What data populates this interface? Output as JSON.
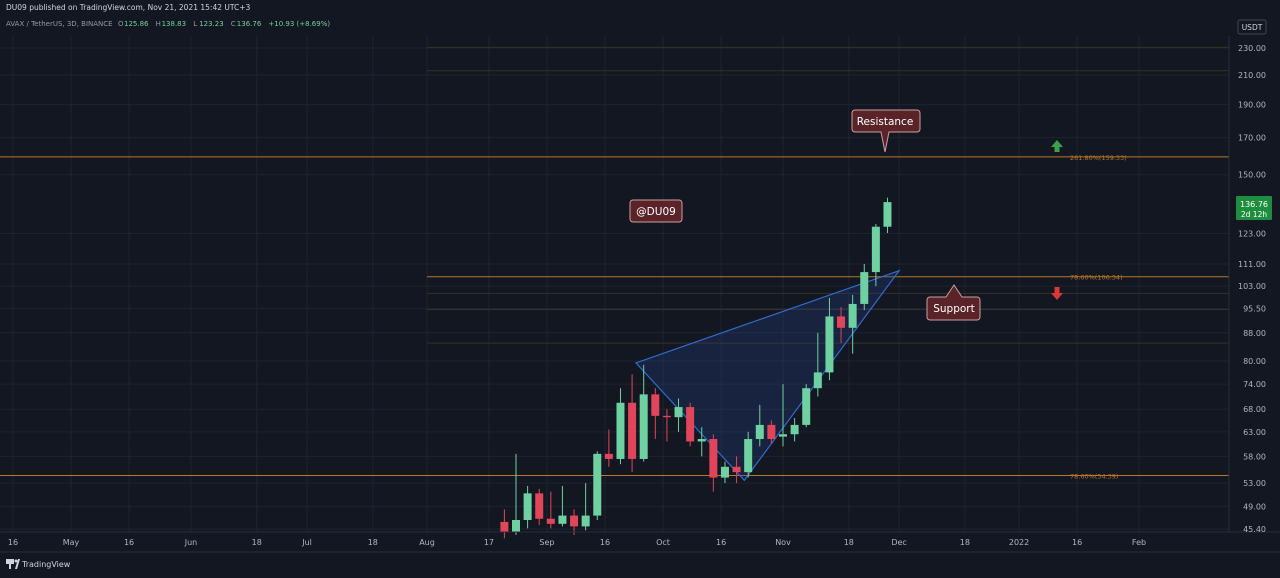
{
  "header": {
    "publish_line": "DU09 published on TradingView.com, Nov 21, 2021 15:42 UTC+3",
    "symbol": "AVAX / TetherUS, 3D, BINANCE",
    "ohlc": [
      {
        "label": "O",
        "value": "125.86"
      },
      {
        "label": "H",
        "value": "138.83"
      },
      {
        "label": "L",
        "value": "123.23"
      },
      {
        "label": "C",
        "value": "136.76"
      }
    ],
    "change": "+10.93 (+8.69%)"
  },
  "currency_label": "USDT",
  "price_tag": {
    "price": "136.76",
    "countdown": "2d 12h"
  },
  "footer": {
    "brand": "TradingView"
  },
  "annotations": {
    "watermark": "@DU09",
    "resistance_label": "Resistance",
    "support_label": "Support"
  },
  "colors": {
    "background": "#131722",
    "up": "#26a69a",
    "up_body": "#6fd1a1",
    "down": "#e0455a",
    "fib_line": "#b8772a",
    "wedge": "#2f6ccf",
    "price_tag": "#1e8e3e",
    "callout_bg": "#5a2328",
    "callout_border": "#c9a0a0",
    "arrow_up": "#3aa14f",
    "arrow_down": "#d83a3a"
  },
  "chart_data": {
    "type": "candlestick",
    "title": "AVAX / TetherUS, 3D, BINANCE",
    "scale": "log",
    "ylim": [
      45.4,
      250
    ],
    "y_ticks": [
      45.4,
      49.0,
      53.0,
      58.0,
      63.0,
      68.0,
      74.0,
      80.0,
      88.0,
      95.5,
      103.0,
      111.0,
      123.0,
      150.0,
      170.0,
      190.0,
      210.0,
      230.0
    ],
    "y_tick_labels": [
      "45.40",
      "49.00",
      "53.00",
      "58.00",
      "63.00",
      "68.00",
      "74.00",
      "80.00",
      "88.00",
      "95.50",
      "103.00",
      "111.00",
      "123.00",
      "150.00",
      "170.00",
      "190.00",
      "210.00",
      "230.00"
    ],
    "x_ticks": [
      {
        "date": "2021-04-16",
        "label": "16"
      },
      {
        "date": "2021-05-01",
        "label": "May"
      },
      {
        "date": "2021-05-16",
        "label": "16"
      },
      {
        "date": "2021-06-01",
        "label": "Jun"
      },
      {
        "date": "2021-06-18",
        "label": "18"
      },
      {
        "date": "2021-07-01",
        "label": "Jul"
      },
      {
        "date": "2021-07-18",
        "label": "18"
      },
      {
        "date": "2021-08-01",
        "label": "Aug"
      },
      {
        "date": "2021-08-17",
        "label": "17"
      },
      {
        "date": "2021-09-01",
        "label": "Sep"
      },
      {
        "date": "2021-09-16",
        "label": "16"
      },
      {
        "date": "2021-10-01",
        "label": "Oct"
      },
      {
        "date": "2021-10-16",
        "label": "16"
      },
      {
        "date": "2021-11-01",
        "label": "Nov"
      },
      {
        "date": "2021-11-18",
        "label": "18"
      },
      {
        "date": "2021-12-01",
        "label": "Dec"
      },
      {
        "date": "2021-12-18",
        "label": "18"
      },
      {
        "date": "2022-01-01",
        "label": "2022"
      },
      {
        "date": "2022-01-16",
        "label": "16"
      },
      {
        "date": "2022-02-01",
        "label": "Feb"
      }
    ],
    "x_range": [
      "2021-04-12",
      "2022-02-18"
    ],
    "candles": [
      {
        "date": "2021-08-21",
        "open": 46.5,
        "high": 48.5,
        "low": 44.0,
        "close": 45.0
      },
      {
        "date": "2021-08-24",
        "open": 45.0,
        "high": 58.5,
        "low": 44.5,
        "close": 46.8
      },
      {
        "date": "2021-08-27",
        "open": 46.8,
        "high": 52.5,
        "low": 45.5,
        "close": 51.2
      },
      {
        "date": "2021-08-30",
        "open": 51.2,
        "high": 52.0,
        "low": 46.0,
        "close": 47.0
      },
      {
        "date": "2021-09-02",
        "open": 47.0,
        "high": 51.5,
        "low": 45.5,
        "close": 46.2
      },
      {
        "date": "2021-09-05",
        "open": 46.2,
        "high": 52.5,
        "low": 45.8,
        "close": 47.5
      },
      {
        "date": "2021-09-08",
        "open": 47.5,
        "high": 48.5,
        "low": 44.5,
        "close": 45.8
      },
      {
        "date": "2021-09-11",
        "open": 45.8,
        "high": 53.0,
        "low": 45.2,
        "close": 47.5
      },
      {
        "date": "2021-09-14",
        "open": 47.5,
        "high": 59.0,
        "low": 46.8,
        "close": 58.5
      },
      {
        "date": "2021-09-17",
        "open": 58.5,
        "high": 63.5,
        "low": 56.0,
        "close": 57.5
      },
      {
        "date": "2021-09-20",
        "open": 57.5,
        "high": 73.0,
        "low": 56.5,
        "close": 69.5
      },
      {
        "date": "2021-09-23",
        "open": 69.5,
        "high": 76.5,
        "low": 55.0,
        "close": 57.5
      },
      {
        "date": "2021-09-26",
        "open": 57.5,
        "high": 79.0,
        "low": 57.0,
        "close": 71.5
      },
      {
        "date": "2021-09-29",
        "open": 71.5,
        "high": 73.0,
        "low": 61.5,
        "close": 66.5
      },
      {
        "date": "2021-10-02",
        "open": 66.5,
        "high": 68.0,
        "low": 61.0,
        "close": 66.2
      },
      {
        "date": "2021-10-05",
        "open": 66.2,
        "high": 70.5,
        "low": 63.0,
        "close": 68.5
      },
      {
        "date": "2021-10-08",
        "open": 68.5,
        "high": 69.5,
        "low": 60.0,
        "close": 61.0
      },
      {
        "date": "2021-10-11",
        "open": 61.0,
        "high": 64.0,
        "low": 58.0,
        "close": 61.5
      },
      {
        "date": "2021-10-14",
        "open": 61.5,
        "high": 62.5,
        "low": 51.5,
        "close": 54.0
      },
      {
        "date": "2021-10-17",
        "open": 54.0,
        "high": 57.0,
        "low": 53.0,
        "close": 56.0
      },
      {
        "date": "2021-10-20",
        "open": 56.0,
        "high": 58.0,
        "low": 53.0,
        "close": 55.0
      },
      {
        "date": "2021-10-23",
        "open": 55.0,
        "high": 63.0,
        "low": 54.0,
        "close": 61.5
      },
      {
        "date": "2021-10-26",
        "open": 61.5,
        "high": 69.0,
        "low": 60.0,
        "close": 64.5
      },
      {
        "date": "2021-10-29",
        "open": 64.5,
        "high": 65.5,
        "low": 60.5,
        "close": 61.5
      },
      {
        "date": "2021-11-01",
        "open": 62.0,
        "high": 74.0,
        "low": 60.0,
        "close": 62.5
      },
      {
        "date": "2021-11-04",
        "open": 62.5,
        "high": 66.0,
        "low": 61.0,
        "close": 64.5
      },
      {
        "date": "2021-11-07",
        "open": 64.5,
        "high": 74.0,
        "low": 64.0,
        "close": 73.0
      },
      {
        "date": "2021-11-10",
        "open": 73.0,
        "high": 88.0,
        "low": 71.0,
        "close": 77.0
      },
      {
        "date": "2021-11-13",
        "open": 77.0,
        "high": 99.0,
        "low": 75.0,
        "close": 93.0
      },
      {
        "date": "2021-11-16",
        "open": 93.0,
        "high": 96.0,
        "low": 85.0,
        "close": 89.5
      },
      {
        "date": "2021-11-19",
        "open": 89.5,
        "high": 100.0,
        "low": 82.0,
        "close": 97.0
      },
      {
        "date": "2021-11-22",
        "open": 97.0,
        "high": 111.0,
        "low": 95.0,
        "close": 108.0
      },
      {
        "date": "2021-11-25",
        "open": 108.0,
        "high": 127.0,
        "low": 103.0,
        "close": 125.86
      },
      {
        "date": "2021-11-28",
        "open": 125.86,
        "high": 138.83,
        "low": 123.23,
        "close": 136.76
      }
    ],
    "fib_levels": [
      {
        "label": "78.60%(106.34)",
        "value": 106.34,
        "solid": true
      },
      {
        "label": "261.80%(159.33)",
        "value": 159.33,
        "solid": true
      },
      {
        "label": "78.60%(54.39)",
        "value": 54.39,
        "solid": true
      }
    ]
  }
}
